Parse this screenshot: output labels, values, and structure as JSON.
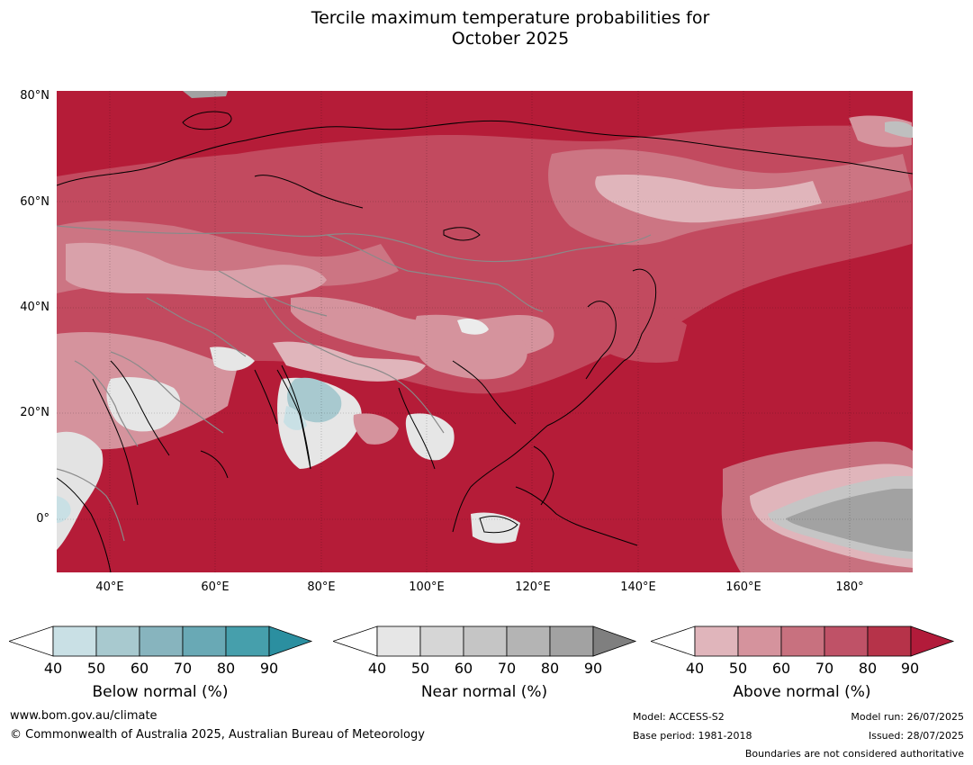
{
  "title": {
    "line1": "Tercile maximum temperature probabilities for",
    "line2": "October 2025"
  },
  "map": {
    "lat_labels": [
      "80°N",
      "60°N",
      "40°N",
      "20°N",
      "0°"
    ],
    "lon_labels": [
      "40°E",
      "60°E",
      "80°E",
      "100°E",
      "120°E",
      "140°E",
      "160°E",
      "180°"
    ],
    "extent": {
      "lon": [
        30,
        192
      ],
      "lat": [
        -10,
        81
      ]
    }
  },
  "colorbars": [
    {
      "id": "below",
      "label": "Below normal (%)",
      "ticks": [
        "40",
        "50",
        "60",
        "70",
        "80",
        "90"
      ],
      "colors": [
        "#c9e0e5",
        "#a8c9cf",
        "#87b4be",
        "#69a9b5",
        "#469fac",
        "#2b8fa0"
      ]
    },
    {
      "id": "near",
      "label": "Near normal (%)",
      "ticks": [
        "40",
        "50",
        "60",
        "70",
        "80",
        "90"
      ],
      "colors": [
        "#e6e6e6",
        "#d6d6d6",
        "#c5c5c5",
        "#b4b4b4",
        "#a2a2a2",
        "#7f7f7f"
      ]
    },
    {
      "id": "above",
      "label": "Above normal (%)",
      "ticks": [
        "40",
        "50",
        "60",
        "70",
        "80",
        "90"
      ],
      "colors": [
        "#e0b5bb",
        "#d5939d",
        "#c8717f",
        "#bf5267",
        "#b63349",
        "#b21b3a"
      ]
    }
  ],
  "footer": {
    "website": "www.bom.gov.au/climate",
    "copyright": "© Commonwealth of Australia 2025, Australian Bureau of Meteorology",
    "model": "Model: ACCESS-S2",
    "base_period": "Base period: 1981-2018",
    "model_run": "Model run: 26/07/2025",
    "issued": "Issued: 28/07/2025",
    "disclaimer": "Boundaries are not considered authoritative"
  }
}
